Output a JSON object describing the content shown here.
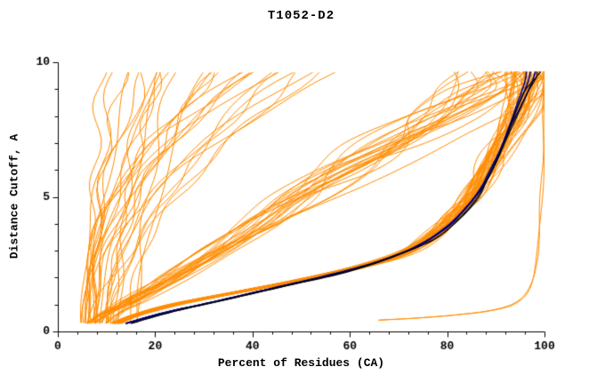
{
  "chart_data": {
    "type": "line",
    "title": "T1052-D2",
    "xlabel": "Percent of Residues (CA)",
    "ylabel": "Distance Cutoff, A",
    "xlim": [
      0,
      100
    ],
    "ylim": [
      0,
      10
    ],
    "xticks": [
      0,
      20,
      40,
      60,
      80,
      100
    ],
    "xtick_minor_step": 4,
    "yticks": [
      0,
      5,
      10
    ],
    "ytick_minor_step": 1,
    "grid": false,
    "legend": "none",
    "colors": {
      "models": "#ff8c00",
      "highlight": "#000080",
      "reference": "#000000",
      "axis": "#000000",
      "background": "#ffffff"
    },
    "series_groups": [
      {
        "name": "orange-dense-bundle",
        "role": "models",
        "color_key": "models",
        "line_width": 1,
        "count": 40,
        "seed": 11,
        "jitter": 5,
        "top_jitter": 4,
        "wiggle": 0.7,
        "anchors": [
          [
            12,
            0.3
          ],
          [
            16,
            0.6
          ],
          [
            24,
            1.0
          ],
          [
            38,
            1.5
          ],
          [
            52,
            2.0
          ],
          [
            64,
            2.5
          ],
          [
            72,
            3.0
          ],
          [
            78,
            3.7
          ],
          [
            82,
            4.4
          ],
          [
            85,
            5.0
          ],
          [
            88,
            6.0
          ],
          [
            91,
            7.0
          ],
          [
            94,
            8.0
          ],
          [
            96.5,
            9.0
          ],
          [
            98,
            9.65
          ]
        ]
      },
      {
        "name": "orange-mid-scatter",
        "role": "models",
        "color_key": "models",
        "line_width": 1,
        "count": 24,
        "seed": 23,
        "jitter": 13,
        "top_jitter": 8,
        "wiggle": 0.9,
        "anchors": [
          [
            8,
            0.3
          ],
          [
            11,
            0.7
          ],
          [
            16,
            1.2
          ],
          [
            24,
            2.0
          ],
          [
            33,
            3.0
          ],
          [
            42,
            4.0
          ],
          [
            51,
            5.0
          ],
          [
            60,
            6.0
          ],
          [
            69,
            7.0
          ],
          [
            78,
            8.0
          ],
          [
            87,
            9.0
          ],
          [
            92,
            9.65
          ]
        ]
      },
      {
        "name": "orange-steep-fan",
        "role": "models",
        "color_key": "models",
        "line_width": 1,
        "count": 30,
        "seed": 37,
        "generator": {
          "bottom_x": [
            4,
            17
          ],
          "top_spread": [
            2,
            48
          ],
          "power": [
            1.2,
            2.7
          ],
          "wiggle": 1.4,
          "y_start": 0.32,
          "y_end": 9.62
        }
      },
      {
        "name": "orange-right-outlier",
        "role": "models",
        "color_key": "models",
        "line_width": 1,
        "count": 2,
        "seed": 51,
        "jitter": 0.8,
        "top_jitter": 0.3,
        "wiggle": 0.3,
        "anchors": [
          [
            66,
            0.42
          ],
          [
            74,
            0.5
          ],
          [
            82,
            0.62
          ],
          [
            89,
            0.78
          ],
          [
            94,
            1.05
          ],
          [
            97,
            1.6
          ],
          [
            98.5,
            2.6
          ],
          [
            99.2,
            4.5
          ],
          [
            99.6,
            7.0
          ],
          [
            99.8,
            9.65
          ]
        ]
      },
      {
        "name": "navy-selected-models",
        "role": "highlight",
        "color_key": "highlight",
        "line_width": 1.6,
        "count": 3,
        "seed": 71,
        "jitter": 0.9,
        "top_jitter": 0.8,
        "wiggle": 0,
        "anchors": [
          [
            14,
            0.3
          ],
          [
            22,
            0.7
          ],
          [
            32,
            1.1
          ],
          [
            44,
            1.6
          ],
          [
            56,
            2.1
          ],
          [
            66,
            2.6
          ],
          [
            74,
            3.2
          ],
          [
            80,
            3.9
          ],
          [
            84,
            4.6
          ],
          [
            87,
            5.3
          ],
          [
            89,
            6.0
          ],
          [
            91,
            6.8
          ],
          [
            93,
            7.6
          ],
          [
            95,
            8.4
          ],
          [
            96.8,
            9.2
          ],
          [
            97.5,
            9.65
          ]
        ]
      },
      {
        "name": "black-reference-curve",
        "role": "reference",
        "color_key": "reference",
        "line_width": 1.2,
        "count": 2,
        "seed": 91,
        "jitter": 0.8,
        "top_jitter": 0.5,
        "wiggle": 0,
        "anchors": [
          [
            15,
            0.3
          ],
          [
            24,
            0.75
          ],
          [
            35,
            1.2
          ],
          [
            47,
            1.7
          ],
          [
            59,
            2.2
          ],
          [
            69,
            2.8
          ],
          [
            77,
            3.4
          ],
          [
            82,
            4.1
          ],
          [
            86,
            4.9
          ],
          [
            88,
            5.6
          ],
          [
            90,
            6.3
          ],
          [
            92,
            7.1
          ],
          [
            94,
            8.0
          ],
          [
            96,
            8.9
          ],
          [
            98,
            9.45
          ],
          [
            98.6,
            9.65
          ]
        ]
      }
    ]
  }
}
